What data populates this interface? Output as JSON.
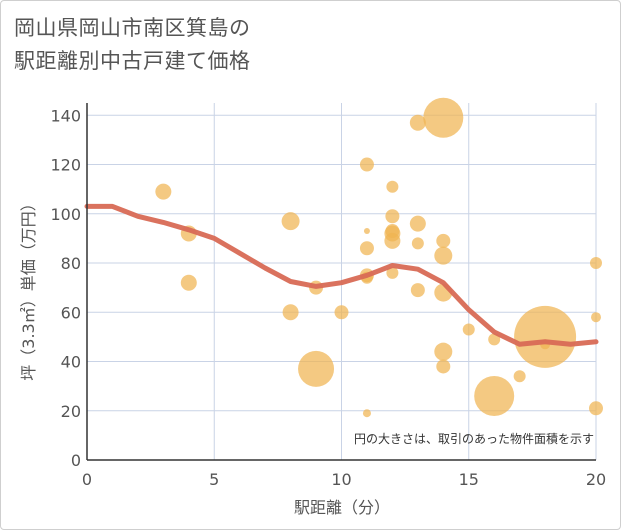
{
  "title_line1": "岡山県岡山市南区箕島の",
  "title_line2": "駅距離別中古戸建て価格",
  "chart_data": {
    "type": "scatter",
    "title": "岡山県岡山市南区箕島の駅距離別中古戸建て価格",
    "xlabel": "駅距離（分）",
    "ylabel": "坪（3.3㎡）単価（万円）",
    "xlim": [
      0,
      20
    ],
    "ylim": [
      0,
      145
    ],
    "xticks": [
      0,
      5,
      10,
      15,
      20
    ],
    "yticks": [
      0,
      20,
      40,
      60,
      80,
      100,
      120,
      140
    ],
    "grid": true,
    "note": "円の大きさは、取引のあった物件面積を示す",
    "colors": {
      "bubble": "#f0b452",
      "line": "#d86a55"
    },
    "bubbles": [
      {
        "x": 3,
        "y": 109,
        "size": 8
      },
      {
        "x": 4,
        "y": 92,
        "size": 8
      },
      {
        "x": 4,
        "y": 72,
        "size": 8
      },
      {
        "x": 8,
        "y": 97,
        "size": 9
      },
      {
        "x": 8,
        "y": 60,
        "size": 8
      },
      {
        "x": 9,
        "y": 70,
        "size": 7
      },
      {
        "x": 9,
        "y": 37,
        "size": 18
      },
      {
        "x": 10,
        "y": 60,
        "size": 7
      },
      {
        "x": 11,
        "y": 120,
        "size": 7
      },
      {
        "x": 11,
        "y": 93,
        "size": 3
      },
      {
        "x": 11,
        "y": 86,
        "size": 7
      },
      {
        "x": 11,
        "y": 75,
        "size": 7
      },
      {
        "x": 11,
        "y": 74,
        "size": 6
      },
      {
        "x": 11,
        "y": 19,
        "size": 4
      },
      {
        "x": 12,
        "y": 111,
        "size": 6
      },
      {
        "x": 12,
        "y": 99,
        "size": 7
      },
      {
        "x": 12,
        "y": 93,
        "size": 7
      },
      {
        "x": 12,
        "y": 92,
        "size": 8
      },
      {
        "x": 12,
        "y": 89,
        "size": 8
      },
      {
        "x": 12,
        "y": 76,
        "size": 6
      },
      {
        "x": 13,
        "y": 137,
        "size": 8
      },
      {
        "x": 13,
        "y": 96,
        "size": 8
      },
      {
        "x": 13,
        "y": 88,
        "size": 6
      },
      {
        "x": 13,
        "y": 69,
        "size": 7
      },
      {
        "x": 14,
        "y": 139,
        "size": 20
      },
      {
        "x": 14,
        "y": 89,
        "size": 7
      },
      {
        "x": 14,
        "y": 83,
        "size": 9
      },
      {
        "x": 14,
        "y": 68,
        "size": 9
      },
      {
        "x": 14,
        "y": 44,
        "size": 9
      },
      {
        "x": 14,
        "y": 38,
        "size": 7
      },
      {
        "x": 15,
        "y": 53,
        "size": 6
      },
      {
        "x": 16,
        "y": 49,
        "size": 6
      },
      {
        "x": 16,
        "y": 26,
        "size": 20
      },
      {
        "x": 17,
        "y": 34,
        "size": 6
      },
      {
        "x": 18,
        "y": 50,
        "size": 31
      },
      {
        "x": 18,
        "y": 47,
        "size": 5
      },
      {
        "x": 20,
        "y": 80,
        "size": 6
      },
      {
        "x": 20,
        "y": 58,
        "size": 5
      },
      {
        "x": 20,
        "y": 21,
        "size": 7
      }
    ],
    "trend_line": {
      "x": [
        0,
        1,
        2,
        3,
        4,
        5,
        6,
        7,
        8,
        9,
        10,
        11,
        12,
        13,
        14,
        15,
        16,
        17,
        18,
        19,
        20
      ],
      "y": [
        103,
        103,
        99,
        96.5,
        93.5,
        90,
        84,
        78,
        72.5,
        70.5,
        72,
        75,
        79,
        77.5,
        72,
        61,
        52,
        47,
        48,
        47,
        48
      ]
    }
  }
}
